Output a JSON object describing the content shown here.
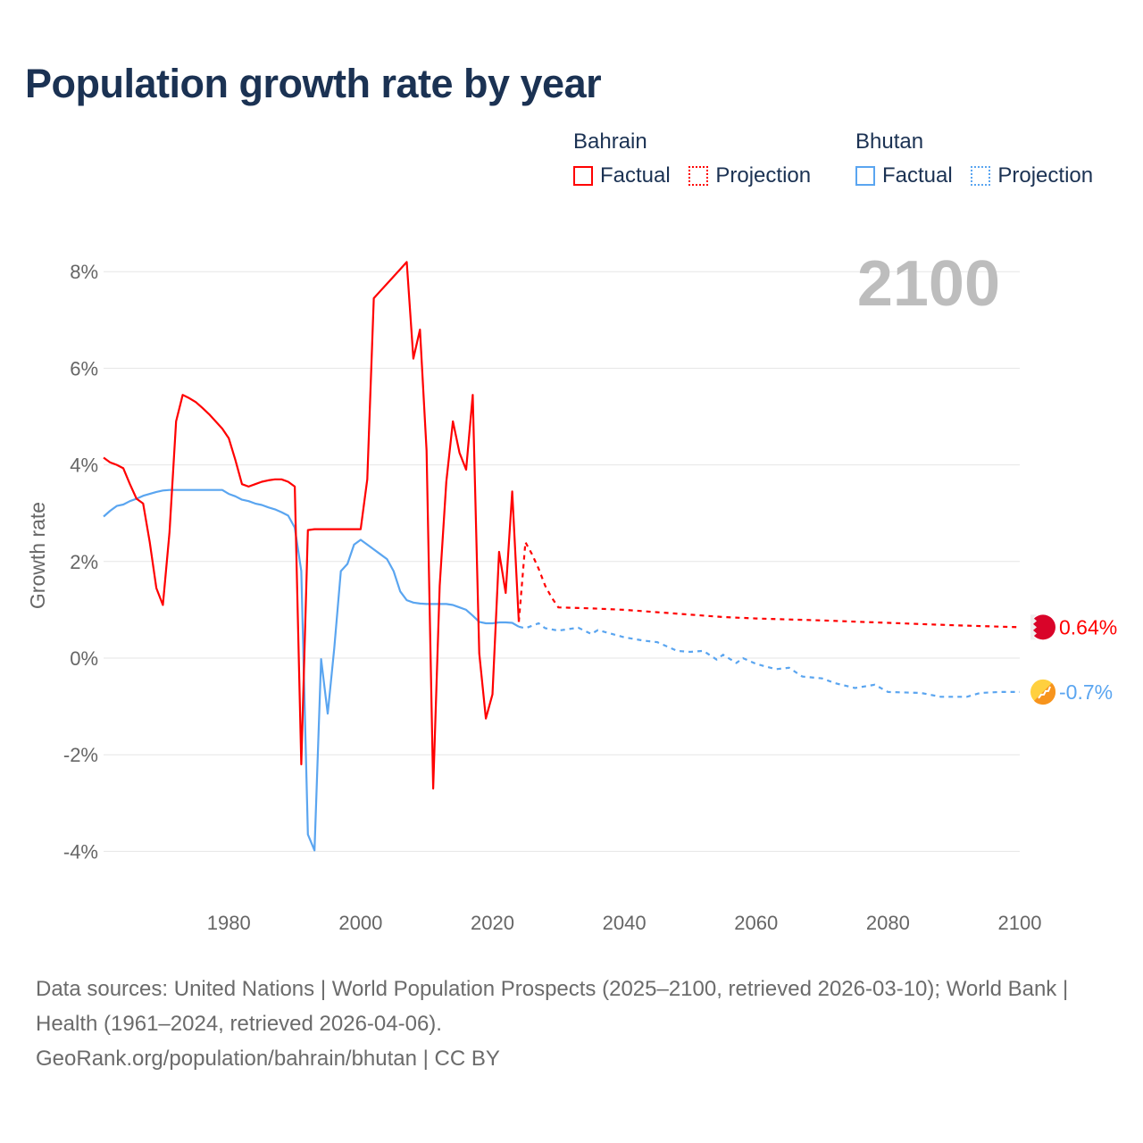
{
  "title": "Population growth rate by year",
  "legend": {
    "groups": [
      {
        "name": "Bahrain",
        "color": "#ff0000",
        "factual": "Factual",
        "projection": "Projection"
      },
      {
        "name": "Bhutan",
        "color": "#5aa5f0",
        "factual": "Factual",
        "projection": "Projection"
      }
    ]
  },
  "footer": {
    "sources": "Data sources: United Nations | World Population Prospects (2025–2100, retrieved 2026-03-10); World Bank | Health (1961–2024, retrieved 2026-04-06).",
    "credit": "GeoRank.org/population/bahrain/bhutan | CC BY"
  },
  "chart_data": {
    "type": "line",
    "title": "Population growth rate by year",
    "xlabel": "",
    "ylabel": "Growth rate",
    "xlim": [
      1961,
      2100
    ],
    "ylim": [
      -4.6,
      8.5
    ],
    "x_ticks": [
      1980,
      2000,
      2020,
      2040,
      2060,
      2080,
      2100
    ],
    "y_ticks": [
      {
        "v": 8,
        "label": "8%"
      },
      {
        "v": 6,
        "label": "6%"
      },
      {
        "v": 4,
        "label": "4%"
      },
      {
        "v": 2,
        "label": "2%"
      },
      {
        "v": 0,
        "label": "0%"
      },
      {
        "v": -2,
        "label": "-2%"
      },
      {
        "v": -4,
        "label": "-4%"
      }
    ],
    "year_watermark": "2100",
    "grid": true,
    "legend_position": "top-right",
    "series": [
      {
        "name": "Bahrain",
        "color": "#ff0000",
        "end_label": "0.64%",
        "factual": [
          [
            1961,
            4.15
          ],
          [
            1962,
            4.05
          ],
          [
            1963,
            4.0
          ],
          [
            1964,
            3.93
          ],
          [
            1965,
            3.6
          ],
          [
            1966,
            3.3
          ],
          [
            1967,
            3.2
          ],
          [
            1968,
            2.4
          ],
          [
            1969,
            1.45
          ],
          [
            1970,
            1.1
          ],
          [
            1971,
            2.6
          ],
          [
            1972,
            4.9
          ],
          [
            1973,
            5.45
          ],
          [
            1974,
            5.38
          ],
          [
            1975,
            5.3
          ],
          [
            1976,
            5.18
          ],
          [
            1977,
            5.05
          ],
          [
            1978,
            4.9
          ],
          [
            1979,
            4.75
          ],
          [
            1980,
            4.55
          ],
          [
            1981,
            4.1
          ],
          [
            1982,
            3.6
          ],
          [
            1983,
            3.55
          ],
          [
            1984,
            3.6
          ],
          [
            1985,
            3.65
          ],
          [
            1986,
            3.68
          ],
          [
            1987,
            3.7
          ],
          [
            1988,
            3.7
          ],
          [
            1989,
            3.65
          ],
          [
            1990,
            3.55
          ],
          [
            1991,
            -2.2
          ],
          [
            1992,
            2.65
          ],
          [
            1993,
            2.67
          ],
          [
            1994,
            2.67
          ],
          [
            1995,
            2.67
          ],
          [
            1996,
            2.67
          ],
          [
            1997,
            2.67
          ],
          [
            1998,
            2.67
          ],
          [
            1999,
            2.67
          ],
          [
            2000,
            2.67
          ],
          [
            2001,
            3.7
          ],
          [
            2002,
            7.45
          ],
          [
            2003,
            7.6
          ],
          [
            2004,
            7.75
          ],
          [
            2005,
            7.9
          ],
          [
            2006,
            8.05
          ],
          [
            2007,
            8.2
          ],
          [
            2008,
            6.2
          ],
          [
            2009,
            6.8
          ],
          [
            2010,
            4.3
          ],
          [
            2011,
            -2.7
          ],
          [
            2012,
            1.5
          ],
          [
            2013,
            3.65
          ],
          [
            2014,
            4.9
          ],
          [
            2015,
            4.25
          ],
          [
            2016,
            3.9
          ],
          [
            2017,
            5.45
          ],
          [
            2018,
            0.1
          ],
          [
            2019,
            -1.25
          ],
          [
            2020,
            -0.75
          ],
          [
            2021,
            2.2
          ],
          [
            2022,
            1.35
          ],
          [
            2023,
            3.45
          ],
          [
            2024,
            0.75
          ]
        ],
        "projection": [
          [
            2024,
            0.75
          ],
          [
            2025,
            2.4
          ],
          [
            2026,
            2.15
          ],
          [
            2027,
            1.85
          ],
          [
            2028,
            1.5
          ],
          [
            2029,
            1.25
          ],
          [
            2030,
            1.05
          ],
          [
            2035,
            1.03
          ],
          [
            2040,
            1.0
          ],
          [
            2045,
            0.95
          ],
          [
            2050,
            0.9
          ],
          [
            2055,
            0.85
          ],
          [
            2060,
            0.82
          ],
          [
            2070,
            0.78
          ],
          [
            2080,
            0.73
          ],
          [
            2090,
            0.68
          ],
          [
            2100,
            0.64
          ]
        ]
      },
      {
        "name": "Bhutan",
        "color": "#5aa5f0",
        "end_label": "-0.7%",
        "factual": [
          [
            1961,
            2.93
          ],
          [
            1962,
            3.05
          ],
          [
            1963,
            3.15
          ],
          [
            1964,
            3.18
          ],
          [
            1965,
            3.25
          ],
          [
            1966,
            3.3
          ],
          [
            1967,
            3.36
          ],
          [
            1968,
            3.4
          ],
          [
            1969,
            3.44
          ],
          [
            1970,
            3.47
          ],
          [
            1971,
            3.48
          ],
          [
            1975,
            3.48
          ],
          [
            1979,
            3.48
          ],
          [
            1980,
            3.4
          ],
          [
            1981,
            3.35
          ],
          [
            1982,
            3.28
          ],
          [
            1983,
            3.25
          ],
          [
            1984,
            3.2
          ],
          [
            1985,
            3.17
          ],
          [
            1986,
            3.12
          ],
          [
            1987,
            3.08
          ],
          [
            1988,
            3.02
          ],
          [
            1989,
            2.95
          ],
          [
            1990,
            2.7
          ],
          [
            1991,
            1.8
          ],
          [
            1992,
            -3.65
          ],
          [
            1993,
            -3.98
          ],
          [
            1994,
            -0.02
          ],
          [
            1995,
            -1.15
          ],
          [
            1996,
            0.2
          ],
          [
            1997,
            1.8
          ],
          [
            1998,
            1.95
          ],
          [
            1999,
            2.35
          ],
          [
            2000,
            2.45
          ],
          [
            2001,
            2.35
          ],
          [
            2002,
            2.25
          ],
          [
            2003,
            2.15
          ],
          [
            2004,
            2.05
          ],
          [
            2005,
            1.8
          ],
          [
            2006,
            1.38
          ],
          [
            2007,
            1.2
          ],
          [
            2008,
            1.15
          ],
          [
            2009,
            1.13
          ],
          [
            2010,
            1.12
          ],
          [
            2013,
            1.12
          ],
          [
            2014,
            1.1
          ],
          [
            2015,
            1.05
          ],
          [
            2016,
            1.0
          ],
          [
            2017,
            0.88
          ],
          [
            2018,
            0.75
          ],
          [
            2019,
            0.72
          ],
          [
            2020,
            0.72
          ],
          [
            2021,
            0.74
          ],
          [
            2022,
            0.74
          ],
          [
            2023,
            0.73
          ],
          [
            2024,
            0.65
          ]
        ],
        "projection": [
          [
            2024,
            0.65
          ],
          [
            2025,
            0.62
          ],
          [
            2027,
            0.72
          ],
          [
            2028,
            0.62
          ],
          [
            2030,
            0.57
          ],
          [
            2033,
            0.63
          ],
          [
            2035,
            0.5
          ],
          [
            2036,
            0.58
          ],
          [
            2040,
            0.43
          ],
          [
            2043,
            0.36
          ],
          [
            2045,
            0.33
          ],
          [
            2048,
            0.15
          ],
          [
            2050,
            0.13
          ],
          [
            2052,
            0.15
          ],
          [
            2054,
            -0.03
          ],
          [
            2055,
            0.07
          ],
          [
            2057,
            -0.1
          ],
          [
            2058,
            0.0
          ],
          [
            2060,
            -0.12
          ],
          [
            2063,
            -0.23
          ],
          [
            2065,
            -0.2
          ],
          [
            2067,
            -0.38
          ],
          [
            2070,
            -0.42
          ],
          [
            2072,
            -0.52
          ],
          [
            2075,
            -0.62
          ],
          [
            2078,
            -0.55
          ],
          [
            2080,
            -0.7
          ],
          [
            2085,
            -0.72
          ],
          [
            2088,
            -0.8
          ],
          [
            2092,
            -0.8
          ],
          [
            2094,
            -0.72
          ],
          [
            2097,
            -0.7
          ],
          [
            2100,
            -0.7
          ]
        ]
      }
    ]
  }
}
